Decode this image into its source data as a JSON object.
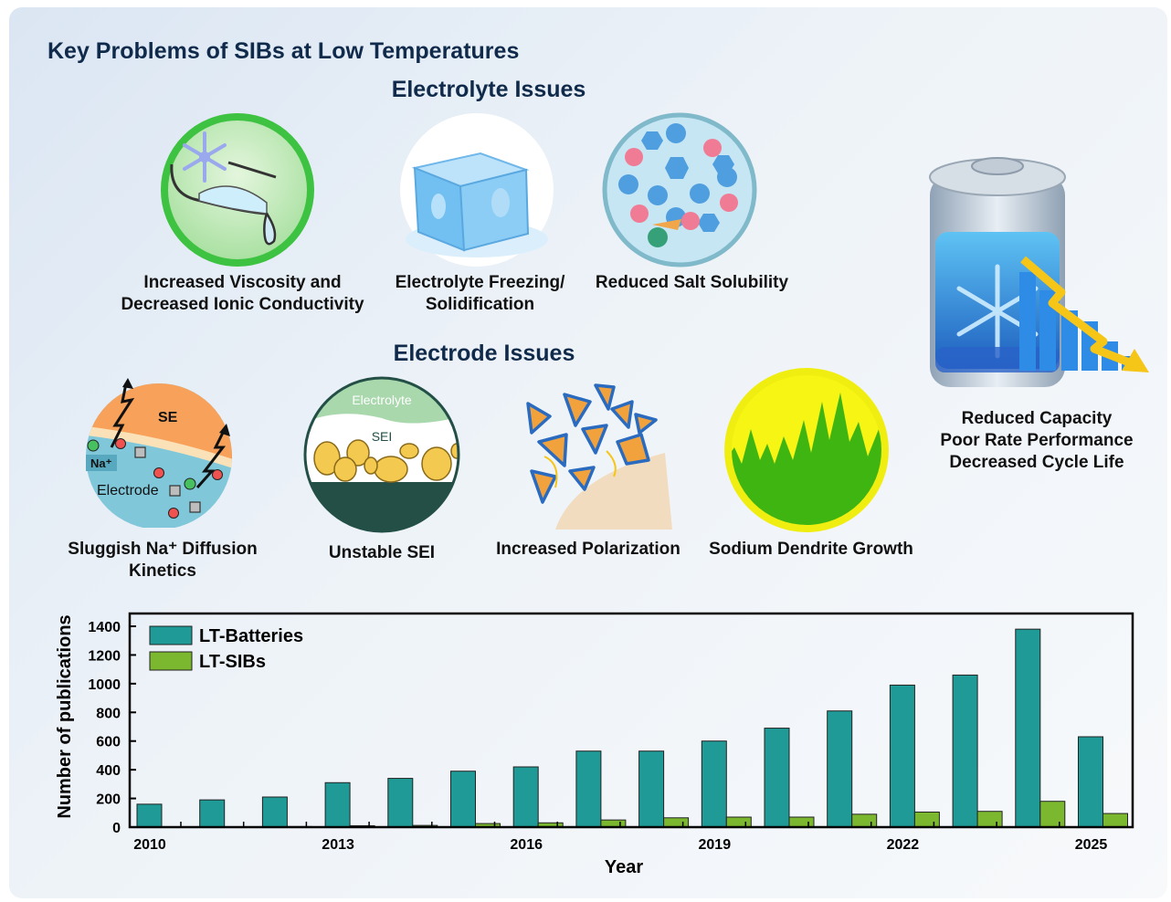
{
  "title": "Key Problems of SIBs at Low Temperatures",
  "electrolyte": {
    "heading": "Electrolyte Issues",
    "items": [
      {
        "line1": "Increased Viscosity and",
        "line2": "Decreased Ionic Conductivity"
      },
      {
        "line1": "Electrolyte Freezing/",
        "line2": "Solidification"
      },
      {
        "line1": "Reduced Salt Solubility",
        "line2": ""
      }
    ]
  },
  "electrode": {
    "heading": "Electrode Issues",
    "items": [
      {
        "line1": "Sluggish Na⁺ Diffusion",
        "line2": "Kinetics",
        "se": "SE",
        "na": "Na⁺",
        "electrode": "Electrode"
      },
      {
        "line1": "Unstable SEI",
        "line2": "",
        "electrolyte": "Electrolyte",
        "sei": "SEI"
      },
      {
        "line1": "Increased Polarization",
        "line2": ""
      },
      {
        "line1": "Sodium Dendrite Growth",
        "line2": ""
      }
    ]
  },
  "consequences": [
    "Reduced Capacity",
    "Poor Rate Performance",
    "Decreased Cycle Life"
  ],
  "colors": {
    "lt_batteries": "#1f9a96",
    "lt_sibs": "#7cb82f",
    "title": "#0f2a4a"
  },
  "chart_data": {
    "type": "bar",
    "xlabel": "Year",
    "ylabel": "Number of publications",
    "ylim": [
      0,
      1400
    ],
    "yticks": [
      0,
      200,
      400,
      600,
      800,
      1000,
      1200,
      1400
    ],
    "categories": [
      "2010",
      "2011",
      "2012",
      "2013",
      "2014",
      "2015",
      "2016",
      "2017",
      "2018",
      "2019",
      "2020",
      "2021",
      "2022",
      "2023",
      "2024",
      "2025"
    ],
    "xtick_labels": [
      "2010",
      "2013",
      "2016",
      "2019",
      "2022",
      "2025"
    ],
    "legend_position": "top-left",
    "series": [
      {
        "name": "LT-Batteries",
        "values": [
          160,
          190,
          210,
          310,
          340,
          390,
          420,
          530,
          530,
          600,
          690,
          810,
          990,
          1060,
          1380,
          630
        ]
      },
      {
        "name": "LT-SIBs",
        "values": [
          2,
          3,
          4,
          10,
          12,
          25,
          30,
          50,
          65,
          70,
          70,
          90,
          105,
          110,
          180,
          95
        ]
      }
    ]
  }
}
